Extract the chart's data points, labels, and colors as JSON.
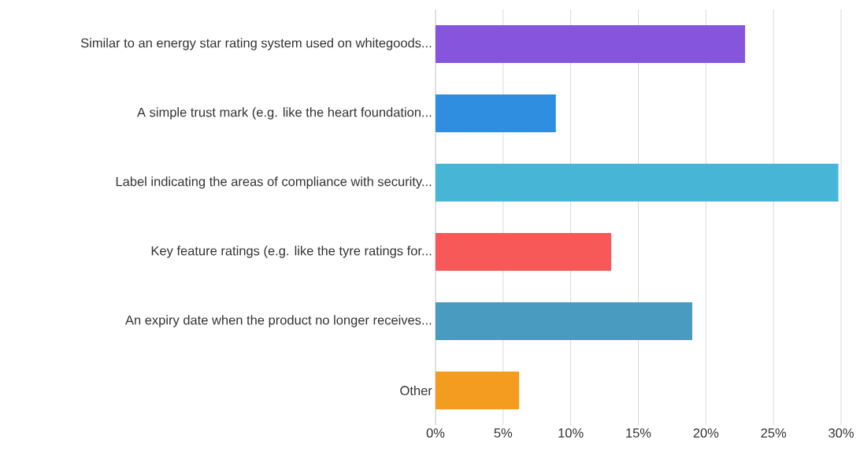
{
  "chart_data": {
    "type": "bar",
    "orientation": "horizontal",
    "categories": [
      "Similar to an energy star rating system used on whitegoods...",
      "A simple trust mark (e.g. like the heart foundation...",
      "Label indicating the areas of compliance with security...",
      "Key feature ratings (e.g. like the tyre ratings for...",
      "An expiry date when the product no longer receives...",
      "Other"
    ],
    "values": [
      22.9,
      8.9,
      29.8,
      13.0,
      19.0,
      6.2
    ],
    "colors": [
      "#8655dd",
      "#2f8ee0",
      "#47b5d6",
      "#f75858",
      "#4a9bc0",
      "#f39c1f"
    ],
    "xlim": [
      0,
      30
    ],
    "xticks": [
      {
        "value": 0,
        "label": "0%"
      },
      {
        "value": 5,
        "label": "5%"
      },
      {
        "value": 10,
        "label": "10%"
      },
      {
        "value": 15,
        "label": "15%"
      },
      {
        "value": 20,
        "label": "20%"
      },
      {
        "value": 25,
        "label": "25%"
      },
      {
        "value": 30,
        "label": "30%"
      }
    ],
    "grid": "x"
  }
}
